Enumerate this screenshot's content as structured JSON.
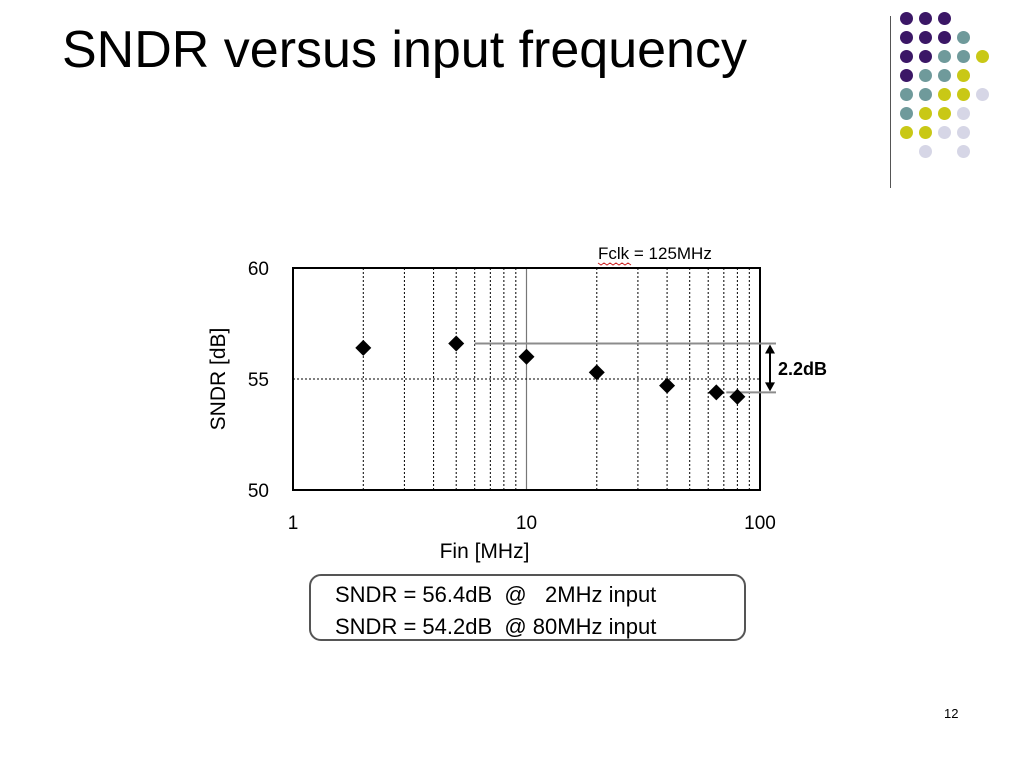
{
  "slide": {
    "title": "SNDR versus input frequency",
    "page_number": "12",
    "notes": [
      "SNDR = 56.4dB  @   2MHz input",
      "SNDR = 54.2dB  @ 80MHz input"
    ],
    "dot_grid_colors": [
      [
        "#3b1766",
        "#3b1766",
        "#3b1766",
        null,
        null
      ],
      [
        "#3b1766",
        "#3b1766",
        "#3b1766",
        "#6f9a9b",
        null
      ],
      [
        "#3b1766",
        "#3b1766",
        "#6f9a9b",
        "#6f9a9b",
        "#c9c816"
      ],
      [
        "#3b1766",
        "#6f9a9b",
        "#6f9a9b",
        "#c9c816",
        null
      ],
      [
        "#6f9a9b",
        "#6f9a9b",
        "#c9c816",
        "#c9c816",
        "#d6d6e6"
      ],
      [
        "#6f9a9b",
        "#c9c816",
        "#c9c816",
        "#d6d6e6",
        null
      ],
      [
        "#c9c816",
        "#c9c816",
        "#d6d6e6",
        "#d6d6e6",
        null
      ],
      [
        null,
        "#d6d6e6",
        null,
        "#d6d6e6",
        null
      ]
    ]
  },
  "chart_data": {
    "type": "scatter",
    "annotation_top": "Fclk = 125MHz",
    "xlabel": "Fin [MHz]",
    "ylabel": "SNDR [dB]",
    "x_scale": "log",
    "xlim": [
      1,
      100
    ],
    "ylim": [
      50,
      60
    ],
    "x_ticks": [
      1,
      10,
      100
    ],
    "x_tick_labels": [
      "1",
      "10",
      "100"
    ],
    "y_ticks": [
      50,
      55,
      60
    ],
    "y_tick_labels": [
      "50",
      "55",
      "60"
    ],
    "grid": true,
    "marker": "diamond",
    "marker_color": "#000000",
    "points": [
      {
        "x": 2,
        "y": 56.4
      },
      {
        "x": 5,
        "y": 56.6
      },
      {
        "x": 10,
        "y": 56.0
      },
      {
        "x": 20,
        "y": 55.3
      },
      {
        "x": 40,
        "y": 54.7
      },
      {
        "x": 65,
        "y": 54.4
      },
      {
        "x": 80,
        "y": 54.2
      }
    ],
    "bracket": {
      "label": "2.2dB",
      "y_top": 56.6,
      "y_bottom": 54.4,
      "x_start": 6
    }
  }
}
